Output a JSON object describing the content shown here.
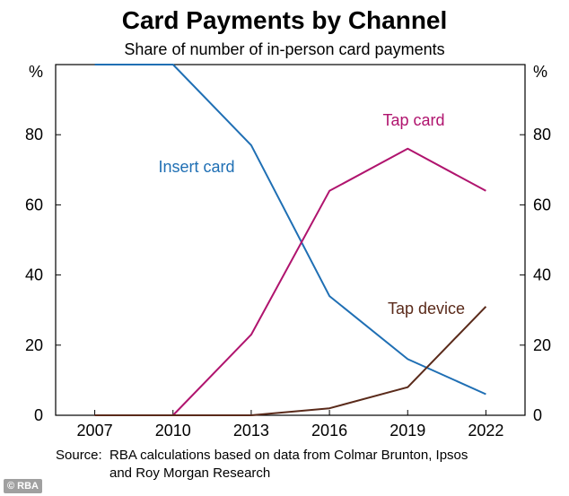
{
  "chart_data": {
    "type": "line",
    "title": "Card Payments by Channel",
    "subtitle": "Share of number of in-person card payments",
    "y_unit_left": "%",
    "y_unit_right": "%",
    "x_ticks": [
      "2007",
      "2010",
      "2013",
      "2016",
      "2019",
      "2022"
    ],
    "y_ticks": [
      "0",
      "20",
      "40",
      "60",
      "80"
    ],
    "ylim": [
      0,
      100
    ],
    "xlim": [
      2005.5,
      2023.5
    ],
    "grid": false,
    "series": [
      {
        "name": "Insert card",
        "color": "#1f6fb4",
        "x": [
          2007,
          2010,
          2013,
          2016,
          2019,
          2022
        ],
        "values": [
          100,
          100,
          77,
          34,
          16,
          6
        ]
      },
      {
        "name": "Tap card",
        "color": "#b0146e",
        "x": [
          2007,
          2010,
          2013,
          2016,
          2019,
          2022
        ],
        "values": [
          0,
          0,
          23,
          64,
          76,
          64
        ]
      },
      {
        "name": "Tap device",
        "color": "#5a2a1a",
        "x": [
          2007,
          2010,
          2013,
          2016,
          2019,
          2022
        ],
        "values": [
          0,
          0,
          0,
          2,
          8,
          31
        ]
      }
    ]
  },
  "source": {
    "label": "Source:",
    "line1": "RBA calculations based on data from Colmar Brunton, Ipsos",
    "line2": "and Roy Morgan Research"
  },
  "logo": {
    "text": "© RBA"
  }
}
